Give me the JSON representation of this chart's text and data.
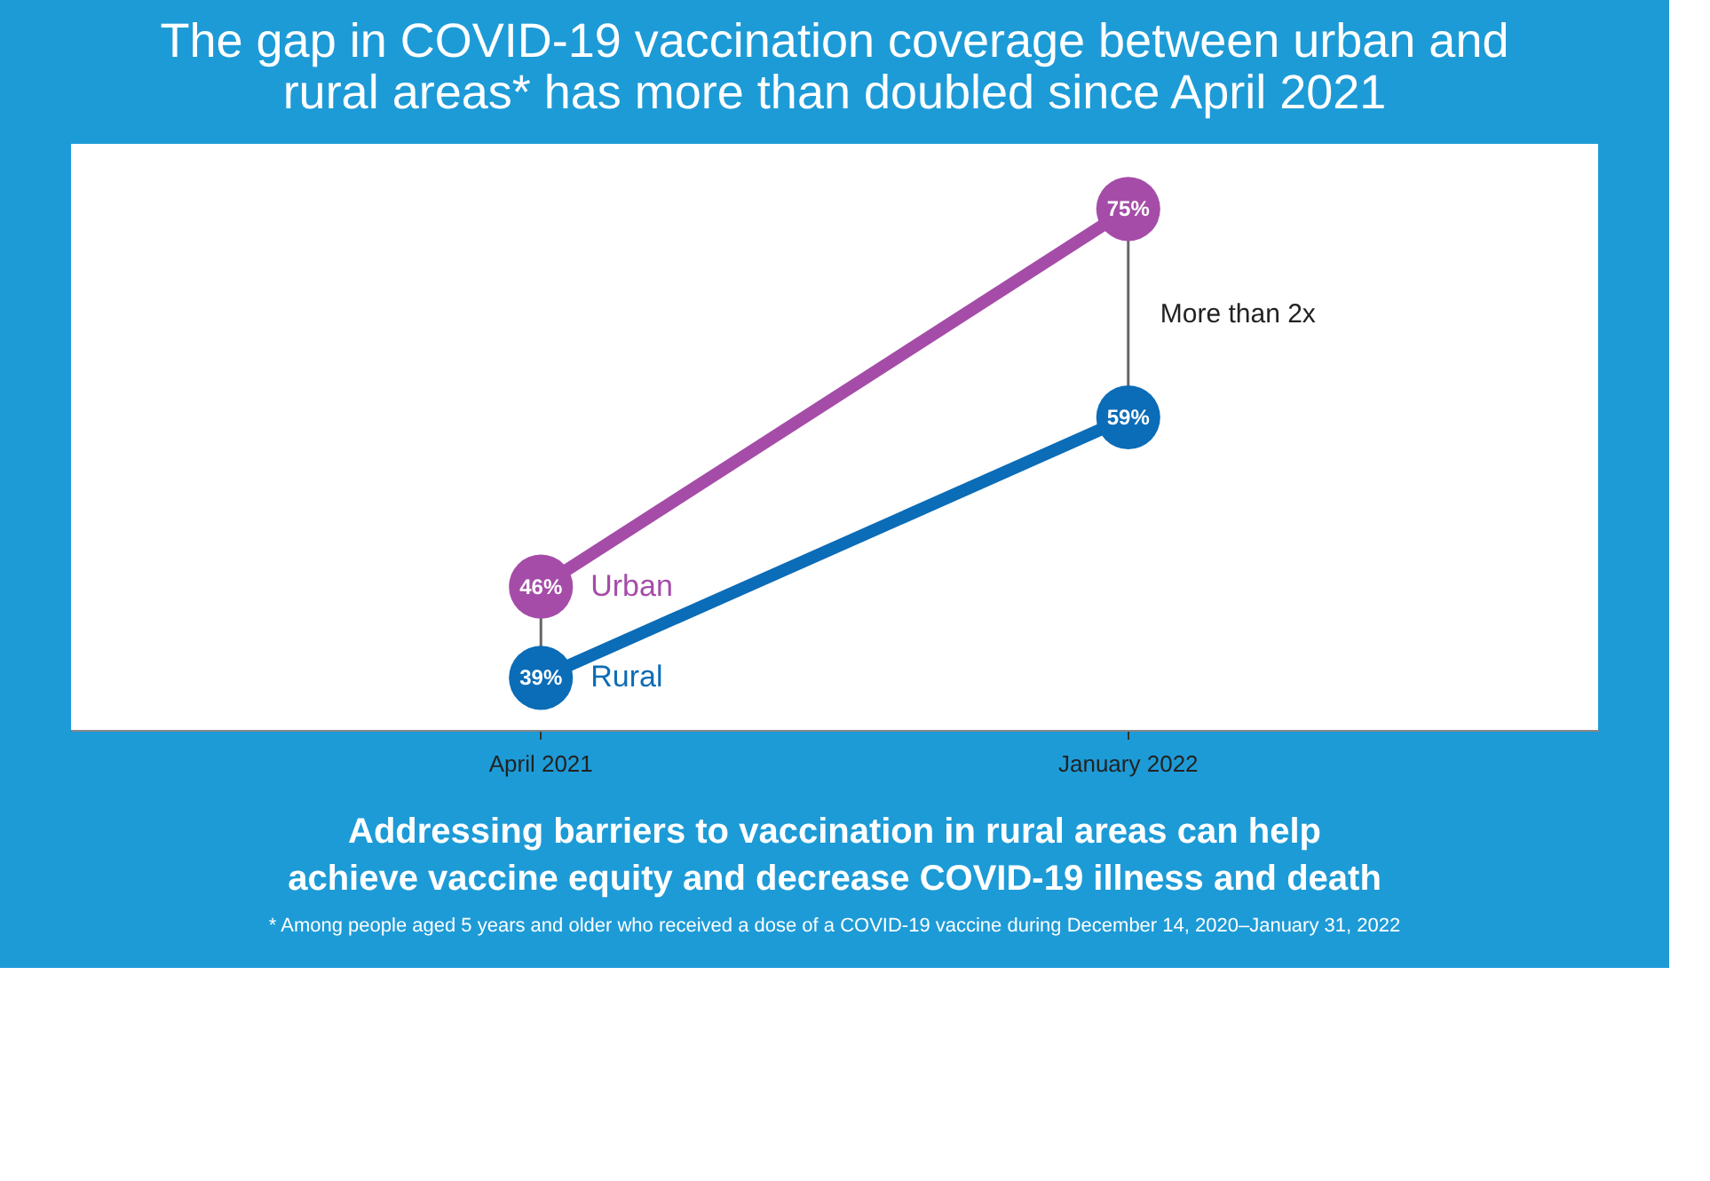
{
  "chart_data": {
    "type": "line",
    "title": "The gap in COVID-19 vaccination coverage between urban and rural areas* has more than doubled since April 2021",
    "subtitle": "Addressing barriers to vaccination in rural areas can help achieve vaccine equity and decrease COVID-19 illness and death",
    "categories": [
      "April 2021",
      "January 2022"
    ],
    "series": [
      {
        "name": "Urban",
        "color": "#a54ca8",
        "values": [
          46,
          75
        ],
        "value_labels": [
          "46%",
          "75%"
        ]
      },
      {
        "name": "Rural",
        "color": "#0b6cb7",
        "values": [
          39,
          59
        ],
        "value_labels": [
          "39%",
          "59%"
        ]
      }
    ],
    "annotations": [
      "More than 2x",
      "* Among people aged 5 years and older who received a dose of a COVID-19 vaccine during December 14, 2020–January 31, 2022"
    ],
    "marker": "circle",
    "grid": false
  }
}
